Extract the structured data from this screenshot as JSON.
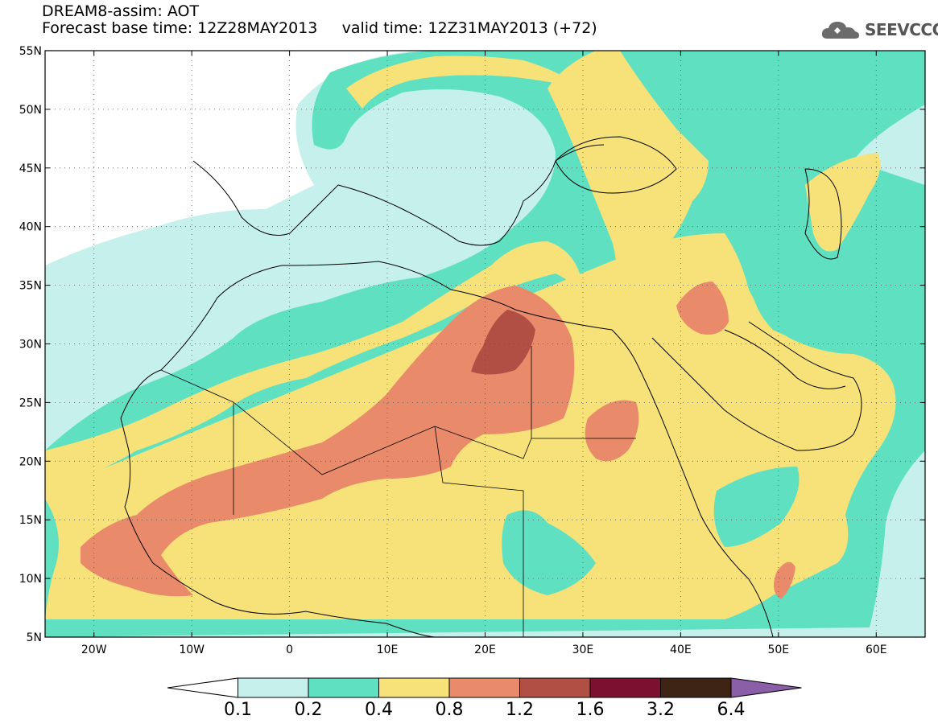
{
  "header": {
    "title_line1": "DREAM8-assim: AOT",
    "title_line2": "Forecast base time: 12Z28MAY2013     valid time: 12Z31MAY2013 (+72)",
    "logo_text": "SEEVCCC"
  },
  "map": {
    "lat_labels": [
      "55N",
      "50N",
      "45N",
      "40N",
      "35N",
      "30N",
      "25N",
      "20N",
      "15N",
      "10N",
      "5N"
    ],
    "lon_labels": [
      "20W",
      "10W",
      "0",
      "10E",
      "20E",
      "30E",
      "40E",
      "50E",
      "60E"
    ],
    "lat_range": [
      5,
      55
    ],
    "lon_range": [
      -25,
      65
    ],
    "grid": "dotted",
    "variable": "AOT"
  },
  "colorbar": {
    "labels": [
      "0.1",
      "0.2",
      "0.4",
      "0.8",
      "1.2",
      "1.6",
      "3.2",
      "6.4"
    ],
    "colors": [
      "#c6f0eb",
      "#5fe0c0",
      "#f7e27a",
      "#e98a6b",
      "#b14f45",
      "#7c1030",
      "#3e2414",
      "#8a5fa8"
    ]
  },
  "colors": {
    "level_0_1": "#c6f0eb",
    "level_0_2": "#5fe0c0",
    "level_0_4": "#f7e27a",
    "level_0_8": "#e98a6b",
    "level_1_2": "#b14f45"
  }
}
